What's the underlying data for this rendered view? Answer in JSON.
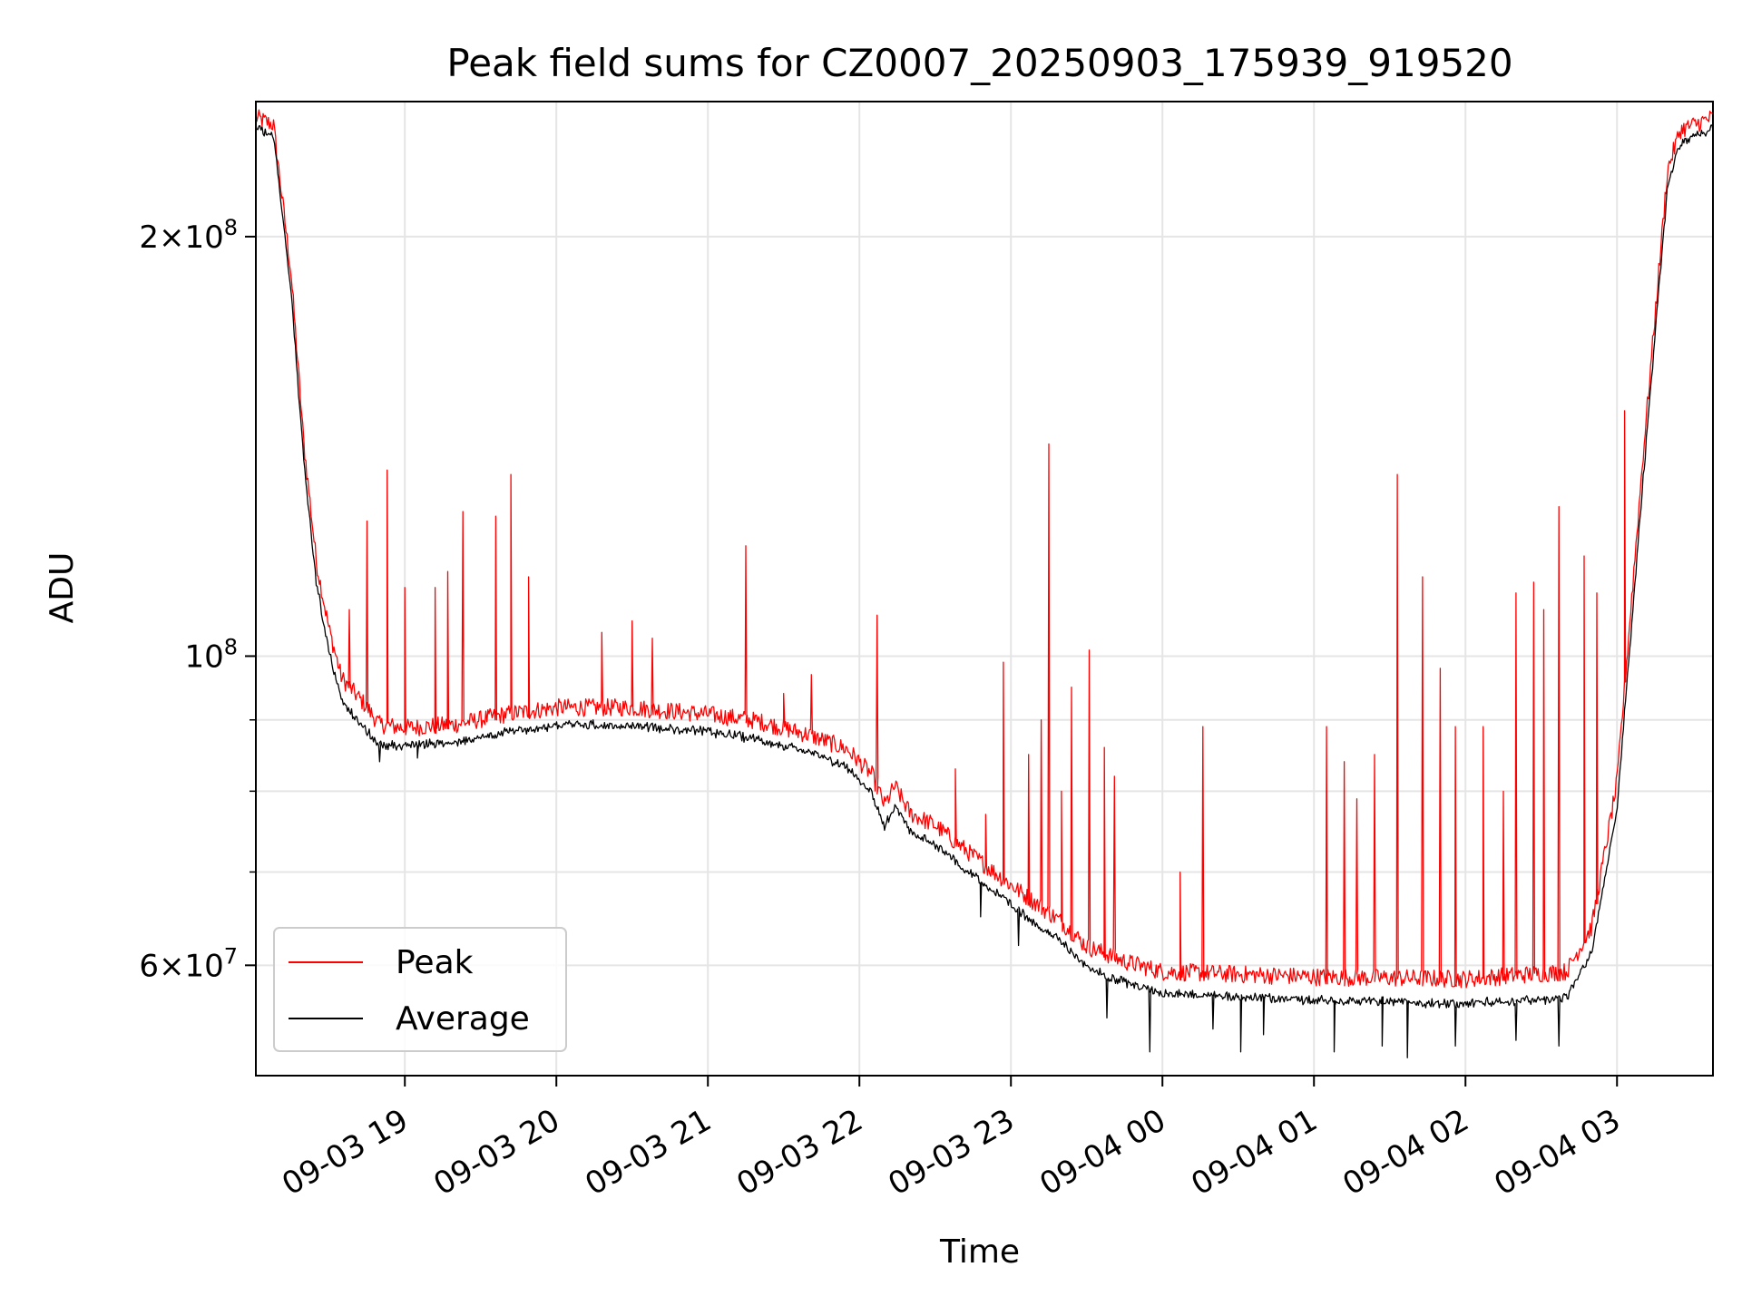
{
  "chart_data": {
    "type": "line",
    "title": "Peak field sums for CZ0007_20250903_175939_919520",
    "xlabel": "Time",
    "ylabel": "ADU",
    "y_scale": "log",
    "ylim": [
      50000000,
      250000000
    ],
    "xlim": [
      "2025-09-03 18:01",
      "2025-09-04 03:38"
    ],
    "grid": true,
    "legend_position": "lower-left",
    "x_ticks": [
      {
        "label": "09-03 19",
        "time": "2025-09-03 19:00"
      },
      {
        "label": "09-03 20",
        "time": "2025-09-03 20:00"
      },
      {
        "label": "09-03 21",
        "time": "2025-09-03 21:00"
      },
      {
        "label": "09-03 22",
        "time": "2025-09-03 22:00"
      },
      {
        "label": "09-03 23",
        "time": "2025-09-03 23:00"
      },
      {
        "label": "09-04 00",
        "time": "2025-09-04 00:00"
      },
      {
        "label": "09-04 01",
        "time": "2025-09-04 01:00"
      },
      {
        "label": "09-04 02",
        "time": "2025-09-04 02:00"
      },
      {
        "label": "09-04 03",
        "time": "2025-09-04 03:00"
      }
    ],
    "y_ticks": [
      {
        "value": 60000000,
        "mantissa": "6",
        "exp": "7"
      },
      {
        "value": 100000000,
        "mantissa": "",
        "exp": "8"
      },
      {
        "value": 200000000,
        "mantissa": "2",
        "exp": "8"
      }
    ],
    "y_minor_ticks": [
      70000000,
      80000000,
      90000000
    ],
    "series": [
      {
        "name": "Peak",
        "color": "#ff0000",
        "baseline": [
          [
            "2025-09-03 18:01",
            240000000
          ],
          [
            "2025-09-03 18:08",
            237000000
          ],
          [
            "2025-09-03 18:15",
            185000000
          ],
          [
            "2025-09-03 18:20",
            140000000
          ],
          [
            "2025-09-03 18:25",
            115000000
          ],
          [
            "2025-09-03 18:30",
            103000000
          ],
          [
            "2025-09-03 18:35",
            95000000
          ],
          [
            "2025-09-03 18:44",
            91000000
          ],
          [
            "2025-09-03 18:50",
            88000000
          ],
          [
            "2025-09-03 19:00",
            87500000
          ],
          [
            "2025-09-03 19:20",
            88000000
          ],
          [
            "2025-09-03 19:40",
            89500000
          ],
          [
            "2025-09-03 20:00",
            90500000
          ],
          [
            "2025-09-03 20:30",
            90500000
          ],
          [
            "2025-09-03 21:00",
            89500000
          ],
          [
            "2025-09-03 21:20",
            88500000
          ],
          [
            "2025-09-03 21:40",
            86500000
          ],
          [
            "2025-09-03 21:55",
            84500000
          ],
          [
            "2025-09-03 22:05",
            81000000
          ],
          [
            "2025-09-03 22:10",
            77000000
          ],
          [
            "2025-09-03 22:14",
            79500000
          ],
          [
            "2025-09-03 22:20",
            76000000
          ],
          [
            "2025-09-03 22:30",
            74500000
          ],
          [
            "2025-09-03 22:40",
            72000000
          ],
          [
            "2025-09-03 23:00",
            67500000
          ],
          [
            "2025-09-03 23:20",
            63500000
          ],
          [
            "2025-09-03 23:30",
            61000000
          ],
          [
            "2025-09-03 23:45",
            59500000
          ],
          [
            "2025-09-04 00:00",
            58500000
          ],
          [
            "2025-09-04 01:00",
            58000000
          ],
          [
            "2025-09-04 02:00",
            57800000
          ],
          [
            "2025-09-04 02:40",
            58500000
          ],
          [
            "2025-09-04 02:50",
            63000000
          ],
          [
            "2025-09-04 03:00",
            80000000
          ],
          [
            "2025-09-04 03:10",
            135000000
          ],
          [
            "2025-09-04 03:20",
            220000000
          ],
          [
            "2025-09-04 03:25",
            235000000
          ],
          [
            "2025-09-04 03:38",
            240000000
          ]
        ],
        "spikes": [
          [
            "2025-09-03 18:38",
            108000000
          ],
          [
            "2025-09-03 18:45",
            125000000
          ],
          [
            "2025-09-03 18:53",
            136000000
          ],
          [
            "2025-09-03 19:00",
            112000000
          ],
          [
            "2025-09-03 19:12",
            112000000
          ],
          [
            "2025-09-03 19:17",
            115000000
          ],
          [
            "2025-09-03 19:23",
            127000000
          ],
          [
            "2025-09-03 19:36",
            126000000
          ],
          [
            "2025-09-03 19:42",
            135000000
          ],
          [
            "2025-09-03 19:49",
            114000000
          ],
          [
            "2025-09-03 20:18",
            104000000
          ],
          [
            "2025-09-03 20:30",
            106000000
          ],
          [
            "2025-09-03 20:38",
            103000000
          ],
          [
            "2025-09-03 21:15",
            120000000
          ],
          [
            "2025-09-03 21:30",
            94000000
          ],
          [
            "2025-09-03 21:41",
            97000000
          ],
          [
            "2025-09-03 22:07",
            107000000
          ],
          [
            "2025-09-03 22:38",
            83000000
          ],
          [
            "2025-09-03 22:50",
            77000000
          ],
          [
            "2025-09-03 22:57",
            99000000
          ],
          [
            "2025-09-03 23:07",
            85000000
          ],
          [
            "2025-09-03 23:12",
            90000000
          ],
          [
            "2025-09-03 23:15",
            142000000
          ],
          [
            "2025-09-03 23:20",
            80000000
          ],
          [
            "2025-09-03 23:24",
            95000000
          ],
          [
            "2025-09-03 23:31",
            101000000
          ],
          [
            "2025-09-03 23:37",
            86000000
          ],
          [
            "2025-09-03 23:41",
            82000000
          ],
          [
            "2025-09-04 00:07",
            70000000
          ],
          [
            "2025-09-04 00:16",
            89000000
          ],
          [
            "2025-09-04 01:05",
            89000000
          ],
          [
            "2025-09-04 01:12",
            84000000
          ],
          [
            "2025-09-04 01:17",
            79000000
          ],
          [
            "2025-09-04 01:24",
            85000000
          ],
          [
            "2025-09-04 01:33",
            135000000
          ],
          [
            "2025-09-04 01:43",
            114000000
          ],
          [
            "2025-09-04 01:50",
            98000000
          ],
          [
            "2025-09-04 01:56",
            89000000
          ],
          [
            "2025-09-04 02:07",
            89000000
          ],
          [
            "2025-09-04 02:15",
            80000000
          ],
          [
            "2025-09-04 02:20",
            111000000
          ],
          [
            "2025-09-04 02:27",
            113000000
          ],
          [
            "2025-09-04 02:31",
            108000000
          ],
          [
            "2025-09-04 02:37",
            128000000
          ],
          [
            "2025-09-04 02:47",
            118000000
          ],
          [
            "2025-09-04 02:52",
            111000000
          ],
          [
            "2025-09-04 03:03",
            150000000
          ]
        ]
      },
      {
        "name": "Average",
        "color": "#000000",
        "baseline": [
          [
            "2025-09-03 18:01",
            240000000
          ],
          [
            "2025-09-03 18:08",
            237000000
          ],
          [
            "2025-09-03 18:15",
            183000000
          ],
          [
            "2025-09-03 18:20",
            138000000
          ],
          [
            "2025-09-03 18:25",
            113000000
          ],
          [
            "2025-09-03 18:30",
            101000000
          ],
          [
            "2025-09-03 18:35",
            93000000
          ],
          [
            "2025-09-03 18:44",
            89000000
          ],
          [
            "2025-09-03 18:50",
            86500000
          ],
          [
            "2025-09-03 19:00",
            86500000
          ],
          [
            "2025-09-03 19:20",
            87000000
          ],
          [
            "2025-09-03 19:40",
            88500000
          ],
          [
            "2025-09-03 20:00",
            89500000
          ],
          [
            "2025-09-03 20:30",
            89500000
          ],
          [
            "2025-09-03 21:00",
            88500000
          ],
          [
            "2025-09-03 21:20",
            87500000
          ],
          [
            "2025-09-03 21:40",
            85500000
          ],
          [
            "2025-09-03 21:55",
            83500000
          ],
          [
            "2025-09-03 22:05",
            80000000
          ],
          [
            "2025-09-03 22:10",
            75500000
          ],
          [
            "2025-09-03 22:14",
            78500000
          ],
          [
            "2025-09-03 22:20",
            75000000
          ],
          [
            "2025-09-03 22:30",
            73500000
          ],
          [
            "2025-09-03 22:40",
            71000000
          ],
          [
            "2025-09-03 23:00",
            66500000
          ],
          [
            "2025-09-03 23:20",
            62500000
          ],
          [
            "2025-09-03 23:30",
            60000000
          ],
          [
            "2025-09-03 23:45",
            58500000
          ],
          [
            "2025-09-04 00:00",
            57500000
          ],
          [
            "2025-09-04 01:00",
            56800000
          ],
          [
            "2025-09-04 02:00",
            56500000
          ],
          [
            "2025-09-04 02:40",
            57000000
          ],
          [
            "2025-09-04 02:50",
            61500000
          ],
          [
            "2025-09-04 03:00",
            78000000
          ],
          [
            "2025-09-04 03:10",
            132000000
          ],
          [
            "2025-09-04 03:20",
            218000000
          ],
          [
            "2025-09-04 03:25",
            234000000
          ],
          [
            "2025-09-04 03:38",
            240000000
          ]
        ],
        "dips": [
          [
            "2025-09-03 18:50",
            84000000
          ],
          [
            "2025-09-03 19:05",
            84500000
          ],
          [
            "2025-09-03 22:48",
            65000000
          ],
          [
            "2025-09-03 23:03",
            62000000
          ],
          [
            "2025-09-03 23:38",
            55000000
          ],
          [
            "2025-09-03 23:55",
            52000000
          ],
          [
            "2025-09-04 00:20",
            54000000
          ],
          [
            "2025-09-04 00:31",
            52000000
          ],
          [
            "2025-09-04 00:40",
            53500000
          ],
          [
            "2025-09-04 01:08",
            52000000
          ],
          [
            "2025-09-04 01:27",
            52500000
          ],
          [
            "2025-09-04 01:37",
            51500000
          ],
          [
            "2025-09-04 01:56",
            52500000
          ],
          [
            "2025-09-04 02:20",
            53000000
          ],
          [
            "2025-09-04 02:37",
            52500000
          ]
        ]
      }
    ]
  }
}
